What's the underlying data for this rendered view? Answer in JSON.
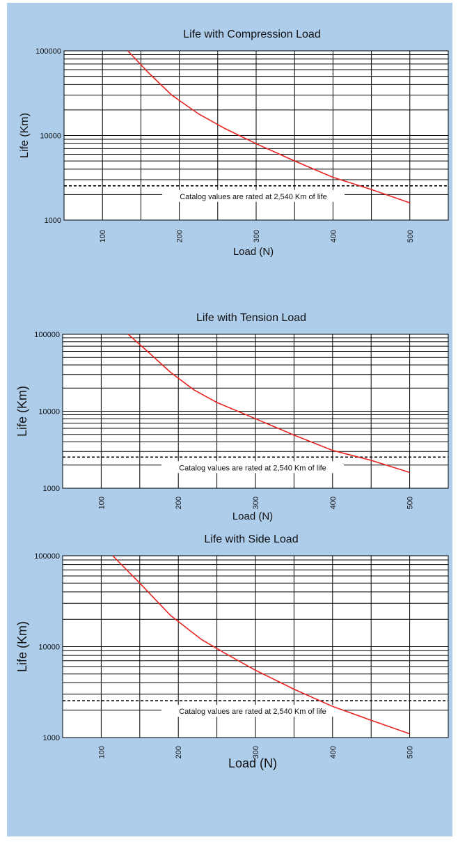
{
  "colors": {
    "background": "#aecdeb",
    "plot": "#ffffff",
    "grid": "#000000",
    "curve": "#e8231f",
    "reference": "#000000"
  },
  "chart_data": [
    {
      "type": "line",
      "title": "Life with Compression Load",
      "xlabel": "Load (N)",
      "ylabel": "Life (Km)",
      "xlim": [
        50,
        550
      ],
      "ylim": [
        1000,
        100000
      ],
      "y_scale": "log",
      "x_ticks": [
        "100",
        "200",
        "300",
        "400",
        "500"
      ],
      "y_ticks": [
        "1000",
        "10000",
        "100000"
      ],
      "grid": true,
      "series": [
        {
          "x": [
            133,
            160,
            190,
            225,
            260,
            300,
            350,
            400,
            450,
            500
          ],
          "y": [
            100000,
            55000,
            30000,
            18000,
            12000,
            8000,
            5000,
            3200,
            2300,
            1600
          ]
        }
      ],
      "reference_line": {
        "y": 2540,
        "label": "Catalog values are rated at 2,540 Km of life"
      }
    },
    {
      "type": "line",
      "title": "Life with Tension Load",
      "xlabel": "Load (N)",
      "ylabel": "Life (Km)",
      "xlim": [
        50,
        550
      ],
      "ylim": [
        1000,
        100000
      ],
      "y_scale": "log",
      "x_ticks": [
        "100",
        "200",
        "300",
        "400",
        "500"
      ],
      "y_ticks": [
        "1000",
        "10000",
        "100000"
      ],
      "grid": true,
      "series": [
        {
          "x": [
            135,
            160,
            190,
            220,
            250,
            300,
            350,
            400,
            450,
            500
          ],
          "y": [
            100000,
            60000,
            32000,
            19000,
            13000,
            8000,
            4900,
            3100,
            2300,
            1600
          ]
        }
      ],
      "reference_line": {
        "y": 2540,
        "label": "Catalog values are rated at 2,540 Km of life"
      }
    },
    {
      "type": "line",
      "title": "Life with Side Load",
      "xlabel": "Load (N)",
      "ylabel": "Life (Km)",
      "xlim": [
        50,
        550
      ],
      "ylim": [
        1000,
        100000
      ],
      "y_scale": "log",
      "x_ticks": [
        "100",
        "200",
        "300",
        "400",
        "500"
      ],
      "y_ticks": [
        "1000",
        "10000",
        "100000"
      ],
      "grid": true,
      "series": [
        {
          "x": [
            115,
            150,
            190,
            230,
            260,
            300,
            350,
            400,
            450,
            500
          ],
          "y": [
            100000,
            50000,
            22000,
            12000,
            8500,
            5500,
            3400,
            2200,
            1550,
            1100
          ]
        }
      ],
      "reference_line": {
        "y": 2540,
        "label": "Catalog values are rated at 2,540 Km of life"
      }
    }
  ]
}
